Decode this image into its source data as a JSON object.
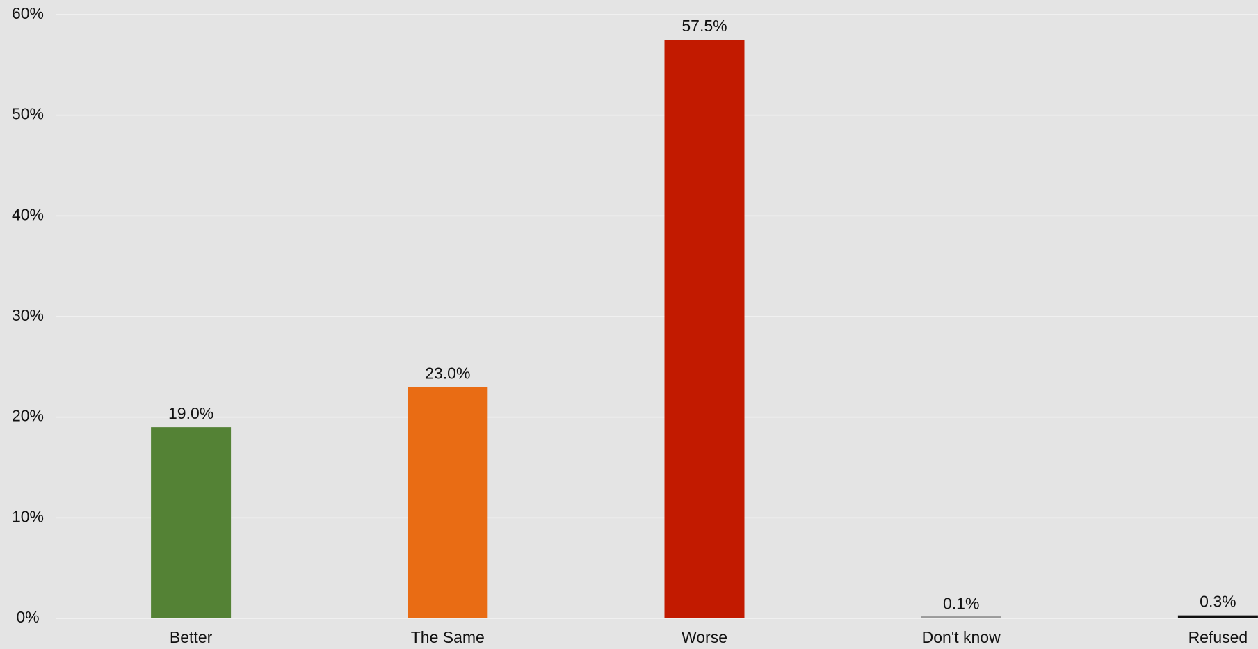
{
  "chart_data": {
    "type": "bar",
    "categories": [
      "Better",
      "The Same",
      "Worse",
      "Don't know",
      "Refused"
    ],
    "values": [
      19.0,
      23.0,
      57.5,
      0.1,
      0.3
    ],
    "value_labels": [
      "19.0%",
      "23.0%",
      "57.5%",
      "0.1%",
      "0.3%"
    ],
    "colors": [
      "#548235",
      "#e96c14",
      "#c21a00",
      "#9a9a9a",
      "#111111"
    ],
    "ylim": [
      0,
      60
    ],
    "yticks": [
      {
        "value": 0,
        "label": "0%"
      },
      {
        "value": 10,
        "label": "10%"
      },
      {
        "value": 20,
        "label": "20%"
      },
      {
        "value": 30,
        "label": "30%"
      },
      {
        "value": 40,
        "label": "40%"
      },
      {
        "value": 50,
        "label": "50%"
      },
      {
        "value": 60,
        "label": "60%"
      }
    ],
    "grid": true
  }
}
